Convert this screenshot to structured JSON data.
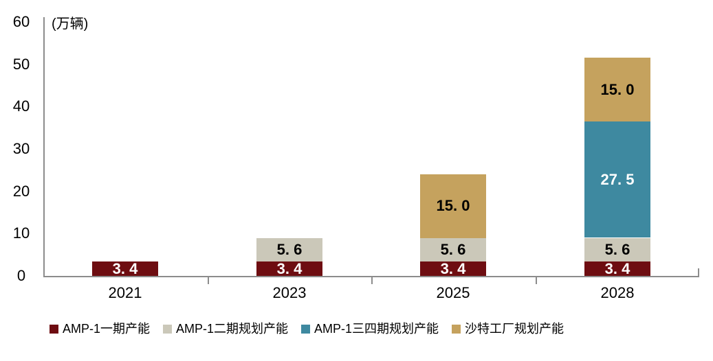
{
  "chart_data": {
    "type": "bar",
    "variant": "stacked",
    "unit_label": "(万辆)",
    "categories": [
      "2021",
      "2023",
      "2025",
      "2028"
    ],
    "series": [
      {
        "name": "AMP-1一期产能",
        "color": "#6E0D11",
        "label_text_color": "#FFFFFF",
        "values": [
          3.4,
          3.4,
          3.4,
          3.4
        ],
        "value_labels": [
          "3. 4",
          "3. 4",
          "3. 4",
          "3. 4"
        ]
      },
      {
        "name": "AMP-1二期规划产能",
        "color": "#CBC8B9",
        "label_text_color": "#000000",
        "values": [
          null,
          5.6,
          5.6,
          5.6
        ],
        "value_labels": [
          null,
          "5. 6",
          "5. 6",
          "5. 6"
        ]
      },
      {
        "name": "AMP-1三四期规划产能",
        "color": "#3E89A0",
        "label_text_color": "#FFFFFF",
        "values": [
          null,
          null,
          null,
          27.5
        ],
        "value_labels": [
          null,
          null,
          null,
          "27. 5"
        ]
      },
      {
        "name": "沙特工厂规划产能",
        "color": "#C5A25E",
        "label_text_color": "#000000",
        "values": [
          null,
          null,
          15.0,
          15.0
        ],
        "value_labels": [
          null,
          null,
          "15. 0",
          "15. 0"
        ]
      }
    ],
    "y_axis": {
      "min": 0,
      "max": 60,
      "tick_interval": 10,
      "tick_labels": [
        "0",
        "10",
        "20",
        "30",
        "40",
        "50",
        "60"
      ]
    },
    "legend_position": "bottom",
    "grid": false,
    "axis_color": "#8C8C8C"
  }
}
